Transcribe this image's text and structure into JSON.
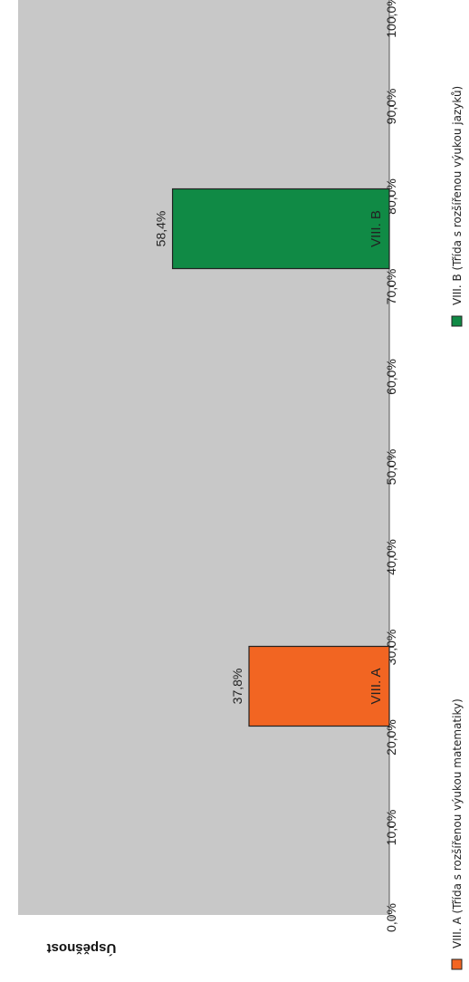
{
  "chart_data": {
    "type": "bar",
    "ylabel": "Úspěšnost",
    "ylim": [
      0,
      100
    ],
    "yticks": [
      "0,0%",
      "10,0%",
      "20,0%",
      "30,0%",
      "40,0%",
      "50,0%",
      "60,0%",
      "70,0%",
      "80,0%",
      "90,0%",
      "100,0%"
    ],
    "categories": [
      "VIII. A",
      "VIII. B"
    ],
    "values": [
      37.8,
      58.4
    ],
    "data_labels": [
      "37,8%",
      "58,4%"
    ],
    "colors": [
      "#f26522",
      "#108a45"
    ],
    "plot_background": "#c8c8c8",
    "grid": false,
    "legend": {
      "placement": "right",
      "items": [
        {
          "label": "VIII. A (Třída s rozšířenou výukou matematiky)",
          "color": "#f26522"
        },
        {
          "label": "VIII. B (Třída s rozšířenou výukou jazyků)",
          "color": "#108a45"
        }
      ]
    }
  }
}
